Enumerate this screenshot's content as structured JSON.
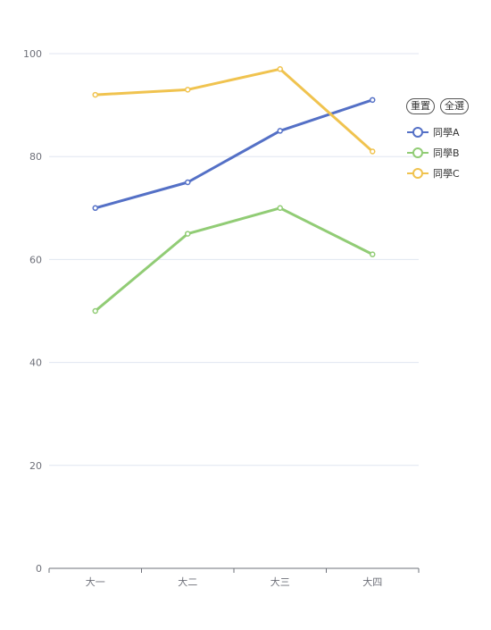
{
  "legend": {
    "reset_label": "重置",
    "select_all_label": "全選"
  },
  "chart_data": {
    "type": "line",
    "categories": [
      "大一",
      "大二",
      "大三",
      "大四"
    ],
    "series": [
      {
        "name": "同學A",
        "values": [
          70,
          75,
          85,
          91
        ],
        "color": "#5470c6"
      },
      {
        "name": "同學B",
        "values": [
          50,
          65,
          70,
          61
        ],
        "color": "#91cc75"
      },
      {
        "name": "同學C",
        "values": [
          92,
          93,
          97,
          81
        ],
        "color": "#f0c34f"
      }
    ],
    "ylim": [
      0,
      100
    ],
    "yticks": [
      0,
      20,
      40,
      60,
      80,
      100
    ],
    "grid": true,
    "legend_position": "right"
  }
}
